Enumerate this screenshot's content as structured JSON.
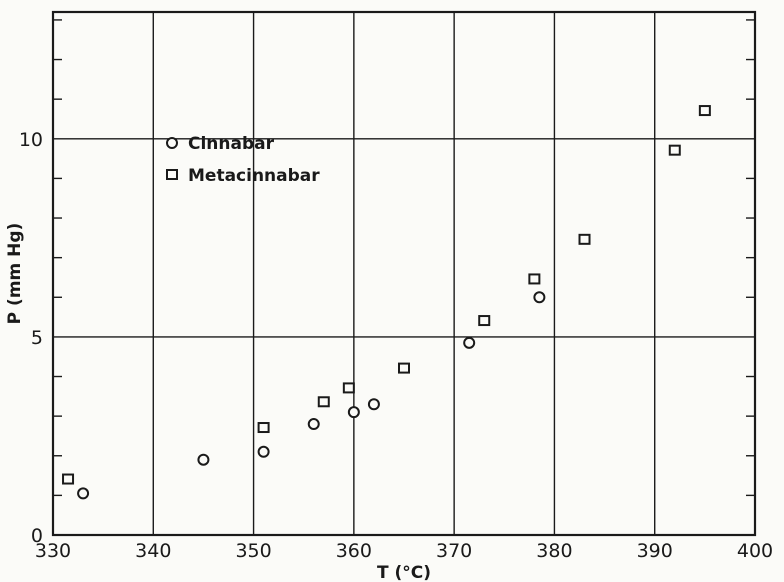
{
  "chart_data": {
    "type": "scatter",
    "title": "",
    "xlabel": "T (°C)",
    "ylabel": "P (mm Hg)",
    "xlim": [
      330,
      400
    ],
    "ylim": [
      0,
      13.2
    ],
    "xticks": [
      330,
      340,
      350,
      360,
      370,
      380,
      390,
      400
    ],
    "xtick_labels": [
      "330",
      "340",
      "350",
      "360",
      "370",
      "380",
      "390",
      "400"
    ],
    "yticks": [
      0,
      5,
      10
    ],
    "ytick_labels": [
      "0",
      "5",
      "10"
    ],
    "grid": true,
    "legend_position": "upper-left",
    "series": [
      {
        "name": "Cinnabar",
        "marker": "circle",
        "points": [
          {
            "x": 333,
            "y": 1.05
          },
          {
            "x": 345,
            "y": 1.9
          },
          {
            "x": 351,
            "y": 2.1
          },
          {
            "x": 356,
            "y": 2.8
          },
          {
            "x": 360,
            "y": 3.1
          },
          {
            "x": 362,
            "y": 3.3
          },
          {
            "x": 371.5,
            "y": 4.85
          },
          {
            "x": 378.5,
            "y": 6.0
          }
        ]
      },
      {
        "name": "Metacinnabar",
        "marker": "square",
        "points": [
          {
            "x": 331.5,
            "y": 1.4
          },
          {
            "x": 351,
            "y": 2.7
          },
          {
            "x": 357,
            "y": 3.35
          },
          {
            "x": 359.5,
            "y": 3.7
          },
          {
            "x": 365,
            "y": 4.2
          },
          {
            "x": 373,
            "y": 5.4
          },
          {
            "x": 378,
            "y": 6.45
          },
          {
            "x": 383,
            "y": 7.45
          },
          {
            "x": 392,
            "y": 9.7
          },
          {
            "x": 395,
            "y": 10.7
          }
        ]
      }
    ]
  }
}
